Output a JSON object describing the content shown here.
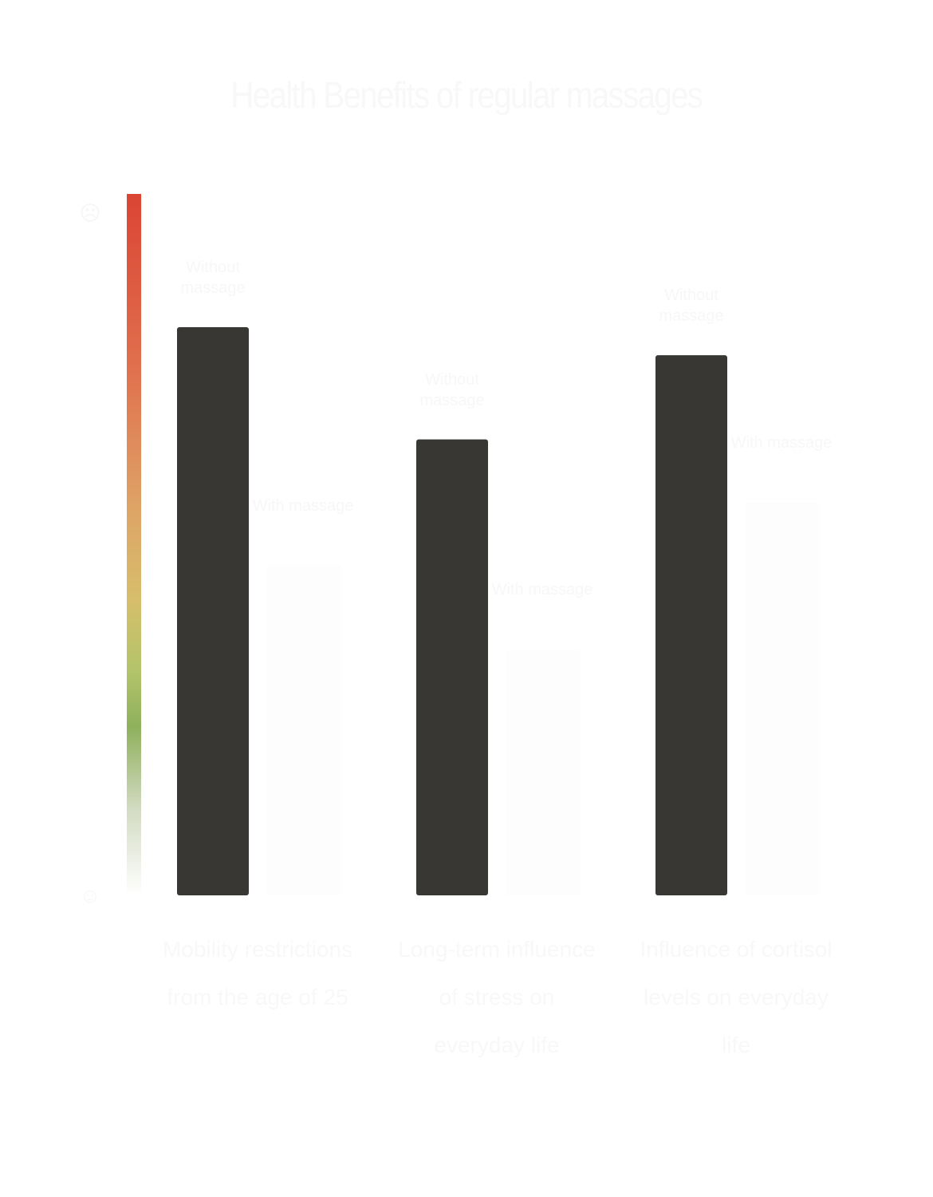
{
  "chart_data": {
    "type": "bar",
    "title": "Health Benefits of regular massages",
    "categories": [
      "Mobility restrictions from the age of 25",
      "Long-term influence of stress on everyday life",
      "Influence of cortisol levels on everyday life"
    ],
    "series": [
      {
        "name": "Without massage",
        "color": "#393733",
        "values": [
          81,
          65,
          77
        ]
      },
      {
        "name": "With massage",
        "color": "#fdfdfd",
        "values": [
          47,
          35,
          56
        ]
      }
    ],
    "ylim": [
      0,
      100
    ],
    "xlabel": "",
    "ylabel": "",
    "axis_gradient": [
      "#db4534",
      "#dea466",
      "#8fb05c",
      "#ffffff"
    ],
    "axis_icons": {
      "top": "sad-face-icon",
      "bottom": "happy-face-icon"
    },
    "grid": false
  }
}
